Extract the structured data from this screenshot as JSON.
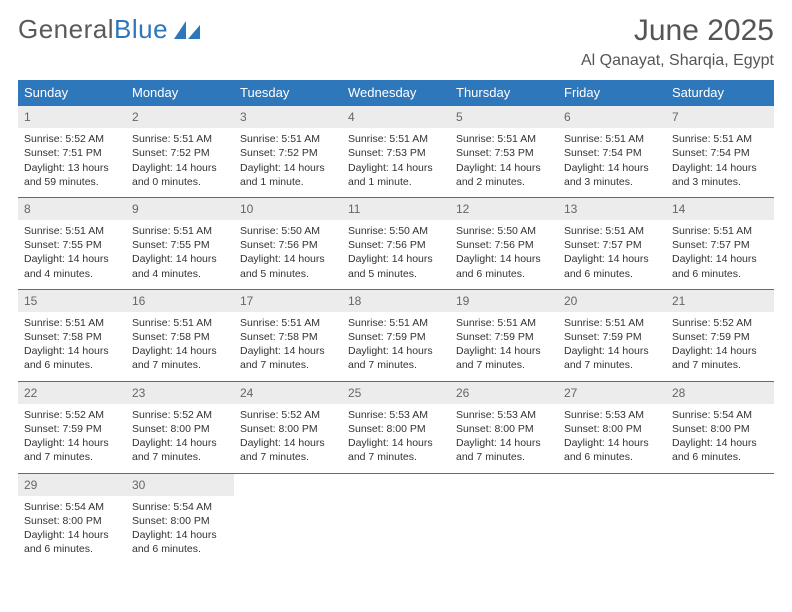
{
  "logo": {
    "text1": "General",
    "text2": "Blue"
  },
  "title": "June 2025",
  "location": "Al Qanayat, Sharqia, Egypt",
  "weekdays": [
    "Sunday",
    "Monday",
    "Tuesday",
    "Wednesday",
    "Thursday",
    "Friday",
    "Saturday"
  ],
  "colors": {
    "brand": "#2f77bb",
    "text": "#333333",
    "muted": "#5a5a5a",
    "daybar": "#ececec",
    "white": "#ffffff"
  },
  "weeks": [
    [
      {
        "n": "1",
        "sr": "5:52 AM",
        "ss": "7:51 PM",
        "dl": "13 hours and 59 minutes."
      },
      {
        "n": "2",
        "sr": "5:51 AM",
        "ss": "7:52 PM",
        "dl": "14 hours and 0 minutes."
      },
      {
        "n": "3",
        "sr": "5:51 AM",
        "ss": "7:52 PM",
        "dl": "14 hours and 1 minute."
      },
      {
        "n": "4",
        "sr": "5:51 AM",
        "ss": "7:53 PM",
        "dl": "14 hours and 1 minute."
      },
      {
        "n": "5",
        "sr": "5:51 AM",
        "ss": "7:53 PM",
        "dl": "14 hours and 2 minutes."
      },
      {
        "n": "6",
        "sr": "5:51 AM",
        "ss": "7:54 PM",
        "dl": "14 hours and 3 minutes."
      },
      {
        "n": "7",
        "sr": "5:51 AM",
        "ss": "7:54 PM",
        "dl": "14 hours and 3 minutes."
      }
    ],
    [
      {
        "n": "8",
        "sr": "5:51 AM",
        "ss": "7:55 PM",
        "dl": "14 hours and 4 minutes."
      },
      {
        "n": "9",
        "sr": "5:51 AM",
        "ss": "7:55 PM",
        "dl": "14 hours and 4 minutes."
      },
      {
        "n": "10",
        "sr": "5:50 AM",
        "ss": "7:56 PM",
        "dl": "14 hours and 5 minutes."
      },
      {
        "n": "11",
        "sr": "5:50 AM",
        "ss": "7:56 PM",
        "dl": "14 hours and 5 minutes."
      },
      {
        "n": "12",
        "sr": "5:50 AM",
        "ss": "7:56 PM",
        "dl": "14 hours and 6 minutes."
      },
      {
        "n": "13",
        "sr": "5:51 AM",
        "ss": "7:57 PM",
        "dl": "14 hours and 6 minutes."
      },
      {
        "n": "14",
        "sr": "5:51 AM",
        "ss": "7:57 PM",
        "dl": "14 hours and 6 minutes."
      }
    ],
    [
      {
        "n": "15",
        "sr": "5:51 AM",
        "ss": "7:58 PM",
        "dl": "14 hours and 6 minutes."
      },
      {
        "n": "16",
        "sr": "5:51 AM",
        "ss": "7:58 PM",
        "dl": "14 hours and 7 minutes."
      },
      {
        "n": "17",
        "sr": "5:51 AM",
        "ss": "7:58 PM",
        "dl": "14 hours and 7 minutes."
      },
      {
        "n": "18",
        "sr": "5:51 AM",
        "ss": "7:59 PM",
        "dl": "14 hours and 7 minutes."
      },
      {
        "n": "19",
        "sr": "5:51 AM",
        "ss": "7:59 PM",
        "dl": "14 hours and 7 minutes."
      },
      {
        "n": "20",
        "sr": "5:51 AM",
        "ss": "7:59 PM",
        "dl": "14 hours and 7 minutes."
      },
      {
        "n": "21",
        "sr": "5:52 AM",
        "ss": "7:59 PM",
        "dl": "14 hours and 7 minutes."
      }
    ],
    [
      {
        "n": "22",
        "sr": "5:52 AM",
        "ss": "7:59 PM",
        "dl": "14 hours and 7 minutes."
      },
      {
        "n": "23",
        "sr": "5:52 AM",
        "ss": "8:00 PM",
        "dl": "14 hours and 7 minutes."
      },
      {
        "n": "24",
        "sr": "5:52 AM",
        "ss": "8:00 PM",
        "dl": "14 hours and 7 minutes."
      },
      {
        "n": "25",
        "sr": "5:53 AM",
        "ss": "8:00 PM",
        "dl": "14 hours and 7 minutes."
      },
      {
        "n": "26",
        "sr": "5:53 AM",
        "ss": "8:00 PM",
        "dl": "14 hours and 7 minutes."
      },
      {
        "n": "27",
        "sr": "5:53 AM",
        "ss": "8:00 PM",
        "dl": "14 hours and 6 minutes."
      },
      {
        "n": "28",
        "sr": "5:54 AM",
        "ss": "8:00 PM",
        "dl": "14 hours and 6 minutes."
      }
    ],
    [
      {
        "n": "29",
        "sr": "5:54 AM",
        "ss": "8:00 PM",
        "dl": "14 hours and 6 minutes."
      },
      {
        "n": "30",
        "sr": "5:54 AM",
        "ss": "8:00 PM",
        "dl": "14 hours and 6 minutes."
      },
      null,
      null,
      null,
      null,
      null
    ]
  ],
  "labels": {
    "sunrise": "Sunrise: ",
    "sunset": "Sunset: ",
    "daylight": "Daylight: "
  }
}
